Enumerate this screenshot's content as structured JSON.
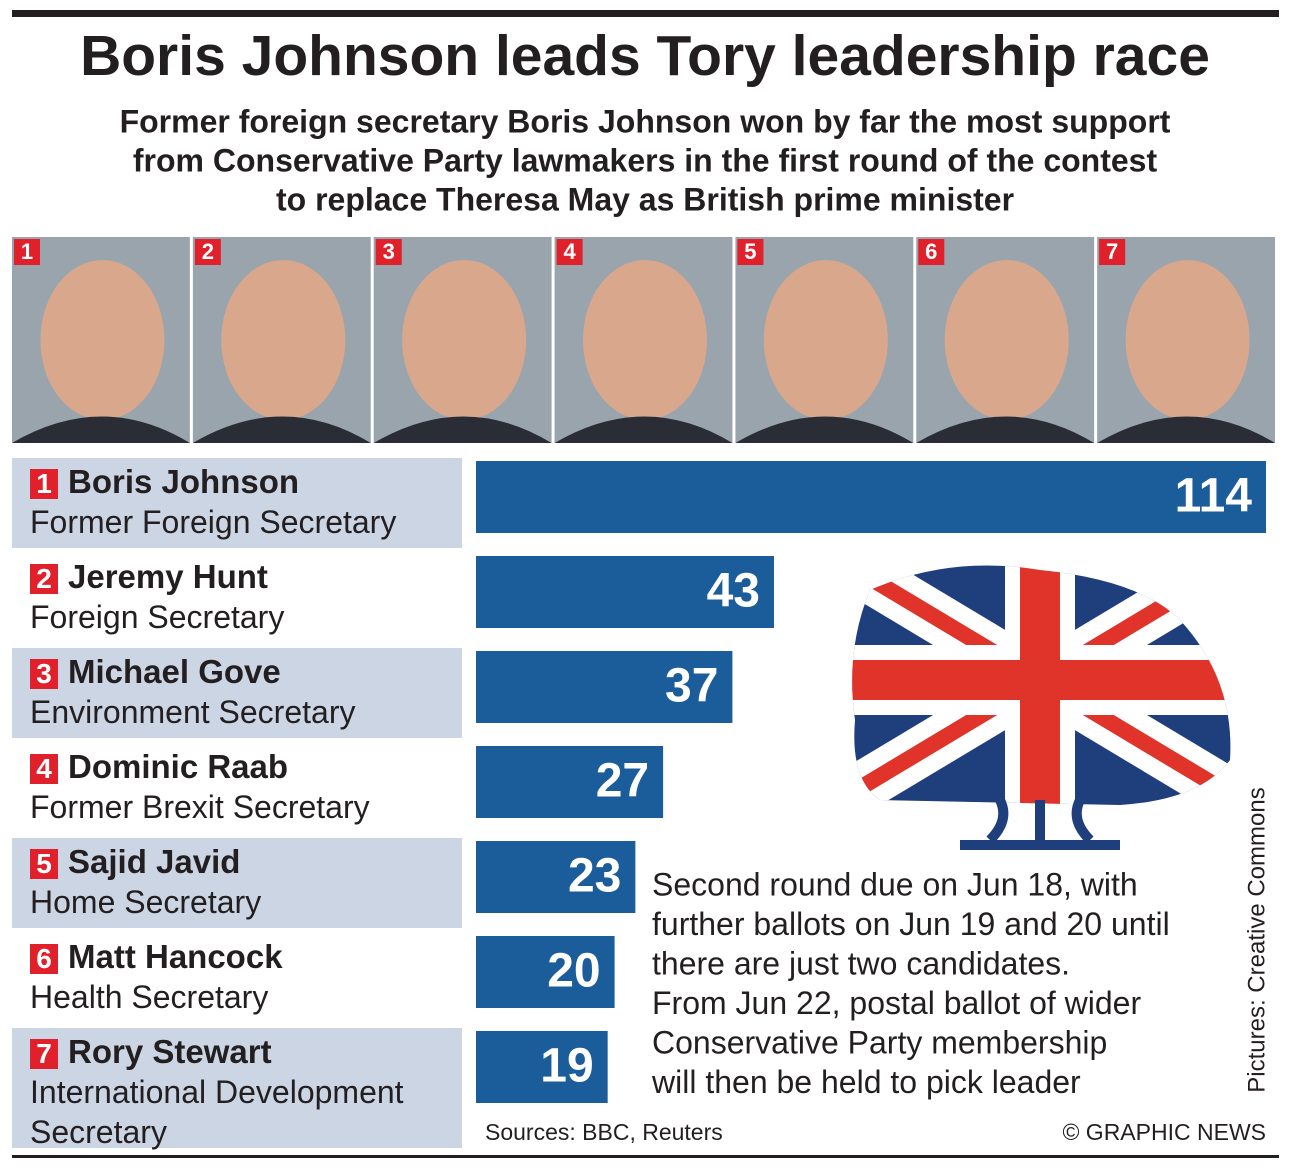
{
  "chart_data": {
    "type": "bar",
    "title": "Boris Johnson leads Tory leadership race",
    "subtitle": [
      "Former foreign secretary Boris Johnson won by far the most support",
      "from Conservative Party lawmakers in the first round of the contest",
      "to replace Theresa May as British prime minister"
    ],
    "ranks": [
      1,
      2,
      3,
      4,
      5,
      6,
      7
    ],
    "categories": [
      "Boris Johnson",
      "Jeremy Hunt",
      "Michael Gove",
      "Dominic Raab",
      "Sajid Javid",
      "Matt Hancock",
      "Rory Stewart"
    ],
    "roles": [
      "Former Foreign Secretary",
      "Foreign Secretary",
      "Environment Secretary",
      "Former Brexit Secretary",
      "Home Secretary",
      "Health Secretary",
      "International Development Secretary"
    ],
    "values": [
      114,
      43,
      37,
      27,
      23,
      20,
      19
    ],
    "color": "#1b5d9b",
    "note": [
      "Second round due on Jun 18, with",
      "further ballots on Jun 19 and 20 until",
      "there are just two candidates.",
      "From Jun 22, postal ballot of wider",
      "Conservative Party membership",
      "will then be held to pick leader"
    ],
    "sources": "Sources: BBC, Reuters",
    "credit": "© GRAPHIC NEWS",
    "picture_credit": "Pictures: Creative Commons"
  }
}
